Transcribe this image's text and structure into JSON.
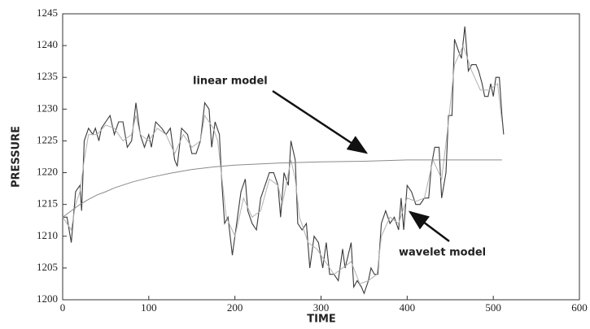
{
  "chart_data": {
    "type": "line",
    "xlabel": "TIME",
    "ylabel": "PRESSURE",
    "xlim": [
      0,
      600
    ],
    "xticks": [
      0,
      100,
      200,
      300,
      400,
      500,
      600
    ],
    "ylim": [
      1200,
      1245
    ],
    "yticks": [
      1200,
      1205,
      1210,
      1215,
      1220,
      1225,
      1230,
      1235,
      1240,
      1245
    ],
    "grid": false,
    "series": [
      {
        "color": "#3a3a3a",
        "x": [
          0,
          5,
          10,
          15,
          20,
          22,
          25,
          30,
          35,
          38,
          42,
          45,
          50,
          55,
          60,
          65,
          70,
          75,
          80,
          85,
          90,
          95,
          100,
          103,
          108,
          115,
          120,
          125,
          130,
          133,
          138,
          145,
          150,
          155,
          160,
          165,
          170,
          173,
          177,
          182,
          185,
          188,
          192,
          197,
          202,
          207,
          212,
          215,
          220,
          225,
          230,
          235,
          240,
          245,
          250,
          253,
          257,
          262,
          265,
          270,
          273,
          278,
          283,
          287,
          292,
          297,
          302,
          306,
          310,
          315,
          320,
          325,
          328,
          335,
          338,
          342,
          347,
          350,
          355,
          358,
          362,
          366,
          370,
          375,
          380,
          385,
          390,
          393,
          396,
          400,
          405,
          410,
          415,
          420,
          425,
          428,
          432,
          437,
          440,
          445,
          448,
          452,
          455,
          460,
          463,
          467,
          471,
          475,
          480,
          483,
          487,
          490,
          494,
          497,
          500,
          503,
          507,
          510,
          512
        ],
        "values": [
          1213,
          1213,
          1209,
          1217,
          1218,
          1214,
          1225,
          1227,
          1226,
          1227,
          1225,
          1227,
          1228,
          1229,
          1226,
          1228,
          1228,
          1224,
          1225,
          1231,
          1226,
          1224,
          1226,
          1224,
          1228,
          1227,
          1226,
          1227,
          1222,
          1221,
          1227,
          1226,
          1223,
          1223,
          1225,
          1231,
          1230,
          1224,
          1228,
          1226,
          1218,
          1212,
          1213,
          1207,
          1212,
          1217,
          1219,
          1214,
          1212,
          1211,
          1216,
          1218,
          1220,
          1220,
          1218,
          1213,
          1220,
          1218,
          1225,
          1222,
          1212,
          1211,
          1212,
          1205,
          1210,
          1209,
          1205,
          1209,
          1204,
          1204,
          1203,
          1208,
          1205,
          1209,
          1202,
          1203,
          1202,
          1201,
          1203,
          1205,
          1204,
          1204,
          1212,
          1214,
          1212,
          1213,
          1211,
          1216,
          1211,
          1218,
          1217,
          1215,
          1215,
          1216,
          1216,
          1221,
          1224,
          1224,
          1216,
          1220,
          1229,
          1229,
          1241,
          1239,
          1238,
          1243,
          1236,
          1237,
          1237,
          1236,
          1234,
          1232,
          1232,
          1234,
          1232,
          1235,
          1235,
          1229,
          1226
        ]
      },
      {
        "name": "wavelet model",
        "color": "#b0b0b0",
        "x": [
          0,
          10,
          15,
          20,
          25,
          30,
          40,
          50,
          60,
          70,
          80,
          85,
          90,
          100,
          110,
          120,
          130,
          140,
          150,
          160,
          165,
          175,
          180,
          185,
          190,
          200,
          210,
          220,
          230,
          240,
          250,
          255,
          265,
          270,
          275,
          285,
          295,
          305,
          315,
          325,
          335,
          345,
          355,
          365,
          370,
          380,
          390,
          400,
          410,
          420,
          430,
          440,
          448,
          455,
          465,
          475,
          485,
          495,
          505,
          510
        ],
        "values": [
          1213,
          1211,
          1215,
          1217,
          1222,
          1226,
          1226,
          1227.5,
          1227,
          1225,
          1226,
          1229,
          1226,
          1225,
          1227,
          1226,
          1223,
          1226,
          1224,
          1225,
          1229,
          1227,
          1225,
          1219,
          1213,
          1210,
          1216,
          1213,
          1214,
          1219,
          1218,
          1215,
          1222,
          1219,
          1213,
          1209,
          1208,
          1206,
          1204,
          1205,
          1206,
          1202.5,
          1203,
          1204,
          1210,
          1213,
          1212,
          1216,
          1215.5,
          1216,
          1222,
          1219,
          1228,
          1237,
          1240,
          1236,
          1233,
          1233,
          1234,
          1228
        ]
      },
      {
        "name": "linear model",
        "color": "#8a8a8a",
        "x": [
          0,
          10,
          20,
          30,
          40,
          50,
          60,
          80,
          100,
          125,
          150,
          175,
          200,
          250,
          300,
          350,
          400,
          450,
          510
        ],
        "values": [
          1213,
          1214,
          1215,
          1215.8,
          1216.5,
          1217,
          1217.6,
          1218.5,
          1219.2,
          1219.9,
          1220.5,
          1220.9,
          1221.2,
          1221.5,
          1221.7,
          1221.8,
          1222,
          1222,
          1222
        ]
      }
    ]
  }
}
